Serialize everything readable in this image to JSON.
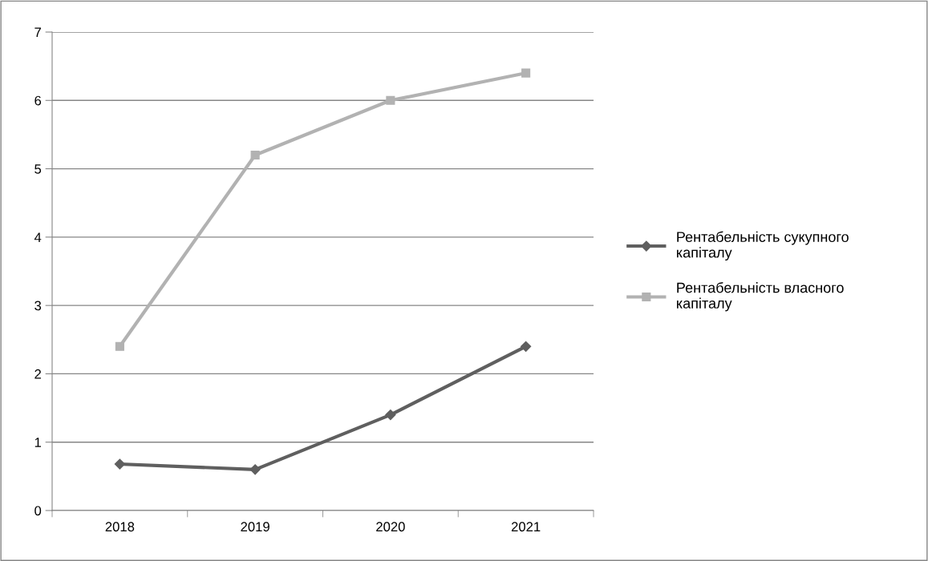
{
  "chart_data": {
    "type": "line",
    "categories": [
      "2018",
      "2019",
      "2020",
      "2021"
    ],
    "series": [
      {
        "name": "Рентабельність сукупного капіталу",
        "color": "#5f5f5f",
        "marker": "diamond",
        "values": [
          0.68,
          0.6,
          1.4,
          2.4
        ]
      },
      {
        "name": "Рентабельність власного капіталу",
        "color": "#b2b2b2",
        "marker": "square",
        "values": [
          2.4,
          5.2,
          6.0,
          6.4
        ]
      }
    ],
    "ylim": [
      0,
      7
    ],
    "yticks": [
      0,
      1,
      2,
      3,
      4,
      5,
      6,
      7
    ],
    "grid": "y",
    "legend": "right",
    "line_style": "solid"
  }
}
